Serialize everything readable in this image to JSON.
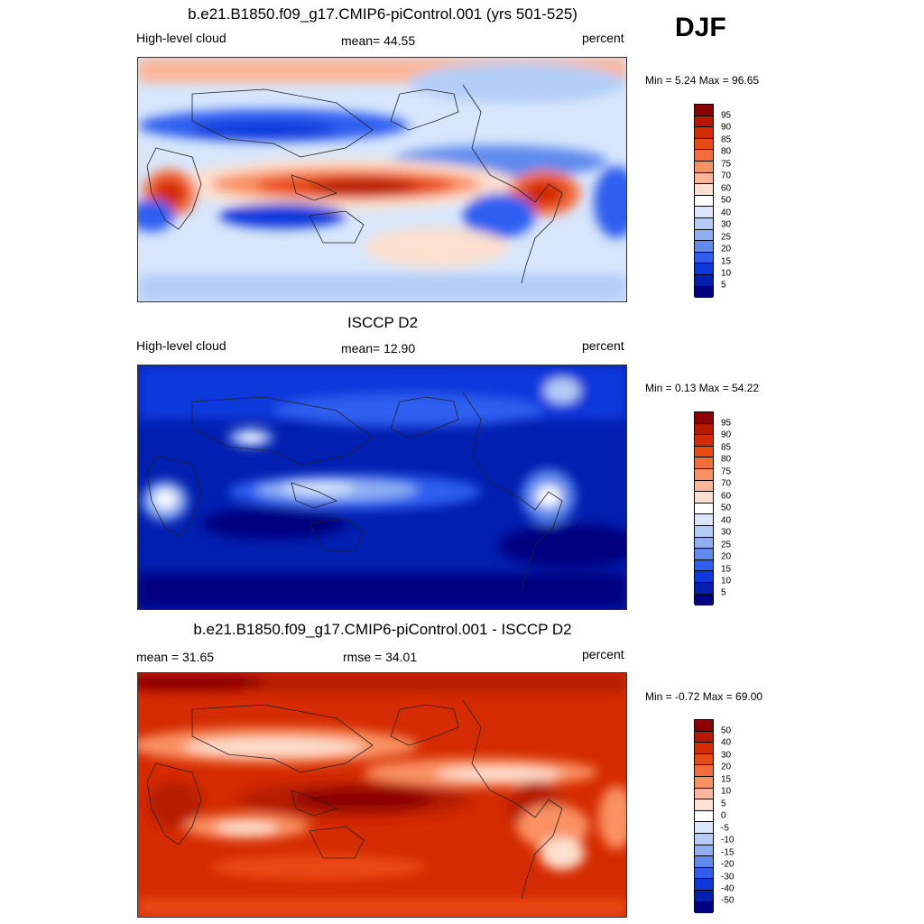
{
  "season": "DJF",
  "panels": [
    {
      "title": "b.e21.B1850.f09_g17.CMIP6-piControl.001 (yrs 501-525)",
      "left_label": "High-level cloud",
      "center_label": "mean=  44.55",
      "right_label": "percent",
      "minmax": "Min =   5.24 Max =  96.65",
      "colorbar_labels": [
        "95",
        "90",
        "85",
        "80",
        "75",
        "70",
        "60",
        "50",
        "40",
        "30",
        "25",
        "20",
        "15",
        "10",
        "5"
      ]
    },
    {
      "title": "ISCCP D2",
      "left_label": "High-level cloud",
      "center_label": "mean=  12.90",
      "right_label": "percent",
      "minmax": "Min =   0.13 Max =  54.22",
      "colorbar_labels": [
        "95",
        "90",
        "85",
        "80",
        "75",
        "70",
        "60",
        "50",
        "40",
        "30",
        "25",
        "20",
        "15",
        "10",
        "5"
      ]
    },
    {
      "title": "b.e21.B1850.f09_g17.CMIP6-piControl.001 - ISCCP D2",
      "left_label": "mean =  31.65",
      "center_label": "rmse =  34.01",
      "right_label": "percent",
      "minmax": "Min =  -0.72 Max =  69.00",
      "colorbar_labels": [
        "50",
        "40",
        "30",
        "20",
        "15",
        "10",
        "5",
        "0",
        "-5",
        "-10",
        "-15",
        "-20",
        "-30",
        "-40",
        "-50"
      ]
    }
  ],
  "colorbar_colors": [
    "#8b0000",
    "#b51a00",
    "#d42b00",
    "#ea4a14",
    "#f46d3a",
    "#f99162",
    "#fbb699",
    "#fde0cf",
    "#ffffff",
    "#d7e6fb",
    "#b3cdf7",
    "#8eb0f2",
    "#5f8bef",
    "#2e5ff0",
    "#0d39db",
    "#011fb0",
    "#000080"
  ]
}
